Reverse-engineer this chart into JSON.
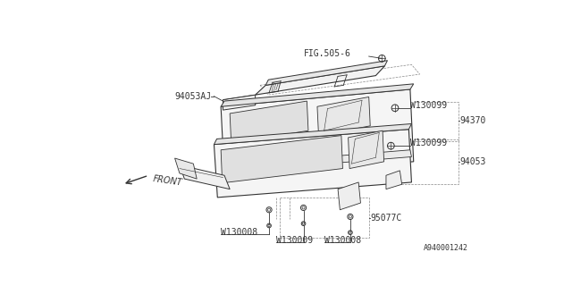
{
  "bg_color": "#ffffff",
  "line_color": "#333333",
  "dashed_color": "#888888",
  "fig_label": "FIG.505-6",
  "part_94053AJ": "94053AJ",
  "part_W130099": "W130099",
  "part_94370": "94370",
  "part_W130099b": "W130099",
  "part_94053": "94053",
  "part_W130009": "W130009",
  "part_W130008a": "W130008",
  "part_W130008b": "W130008",
  "part_95077C": "95077C",
  "part_FRONT": "FRONT",
  "catalog_no": "A940001242",
  "font_size": 7.0,
  "font_size_small": 6.0
}
